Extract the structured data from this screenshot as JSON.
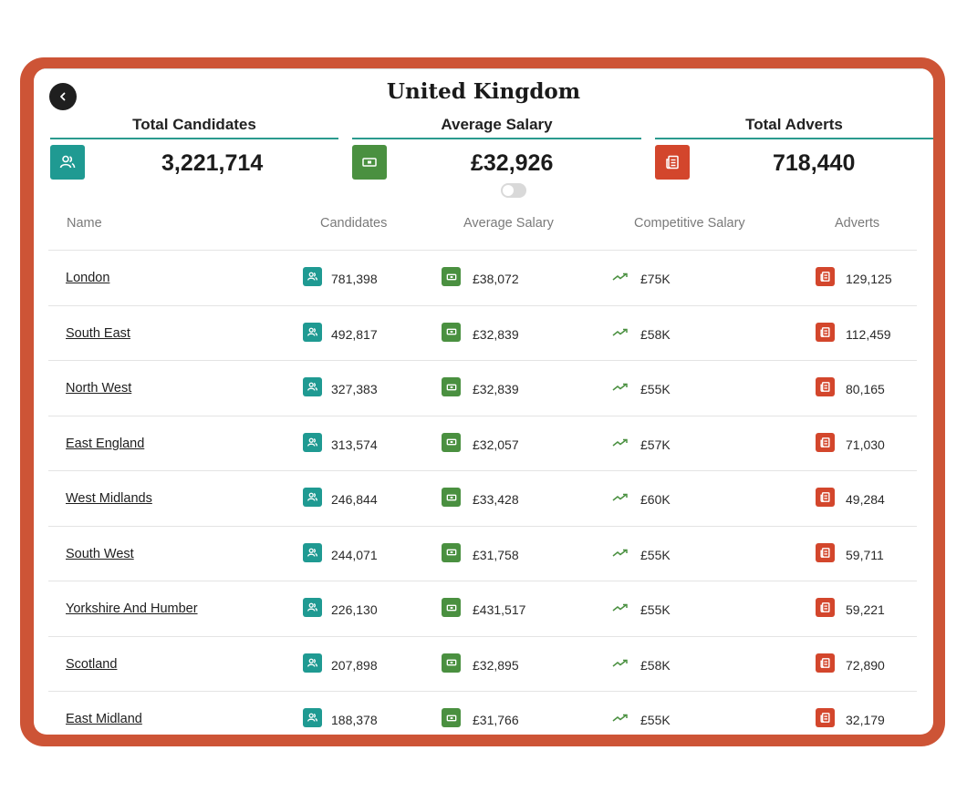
{
  "header": {
    "title": "United Kingdom"
  },
  "stats": {
    "candidates": {
      "label": "Total Candidates",
      "value": "3,221,714",
      "icon": "users-icon"
    },
    "salary": {
      "label": "Average Salary",
      "value": "£32,926",
      "icon": "banknote-icon"
    },
    "adverts": {
      "label": "Total Adverts",
      "value": "718,440",
      "icon": "newspaper-icon"
    }
  },
  "table": {
    "columns": [
      "Name",
      "Candidates",
      "Average Salary",
      "Competitive Salary",
      "Adverts"
    ],
    "rows": [
      {
        "name": "London",
        "candidates": "781,398",
        "avg_salary": "£38,072",
        "competitive": "£75K",
        "adverts": "129,125"
      },
      {
        "name": "South East",
        "candidates": "492,817",
        "avg_salary": "£32,839",
        "competitive": "£58K",
        "adverts": "112,459"
      },
      {
        "name": "North West",
        "candidates": "327,383",
        "avg_salary": "£32,839",
        "competitive": "£55K",
        "adverts": "80,165"
      },
      {
        "name": "East England",
        "candidates": "313,574",
        "avg_salary": "£32,057",
        "competitive": "£57K",
        "adverts": "71,030"
      },
      {
        "name": "West Midlands",
        "candidates": "246,844",
        "avg_salary": "£33,428",
        "competitive": "£60K",
        "adverts": "49,284"
      },
      {
        "name": "South West",
        "candidates": "244,071",
        "avg_salary": "£31,758",
        "competitive": "£55K",
        "adverts": "59,711"
      },
      {
        "name": "Yorkshire And Humber",
        "candidates": "226,130",
        "avg_salary": "£431,517",
        "competitive": "£55K",
        "adverts": "59,221"
      },
      {
        "name": "Scotland",
        "candidates": "207,898",
        "avg_salary": "£32,895",
        "competitive": "£58K",
        "adverts": "72,890"
      },
      {
        "name": "East Midland",
        "candidates": "188,378",
        "avg_salary": "£31,766",
        "competitive": "£55K",
        "adverts": "32,179"
      }
    ]
  },
  "colors": {
    "frame": "#cd5436",
    "teal": "#1f9a92",
    "green": "#4a9040",
    "red": "#d3462c",
    "rule": "#2a9a8e"
  }
}
